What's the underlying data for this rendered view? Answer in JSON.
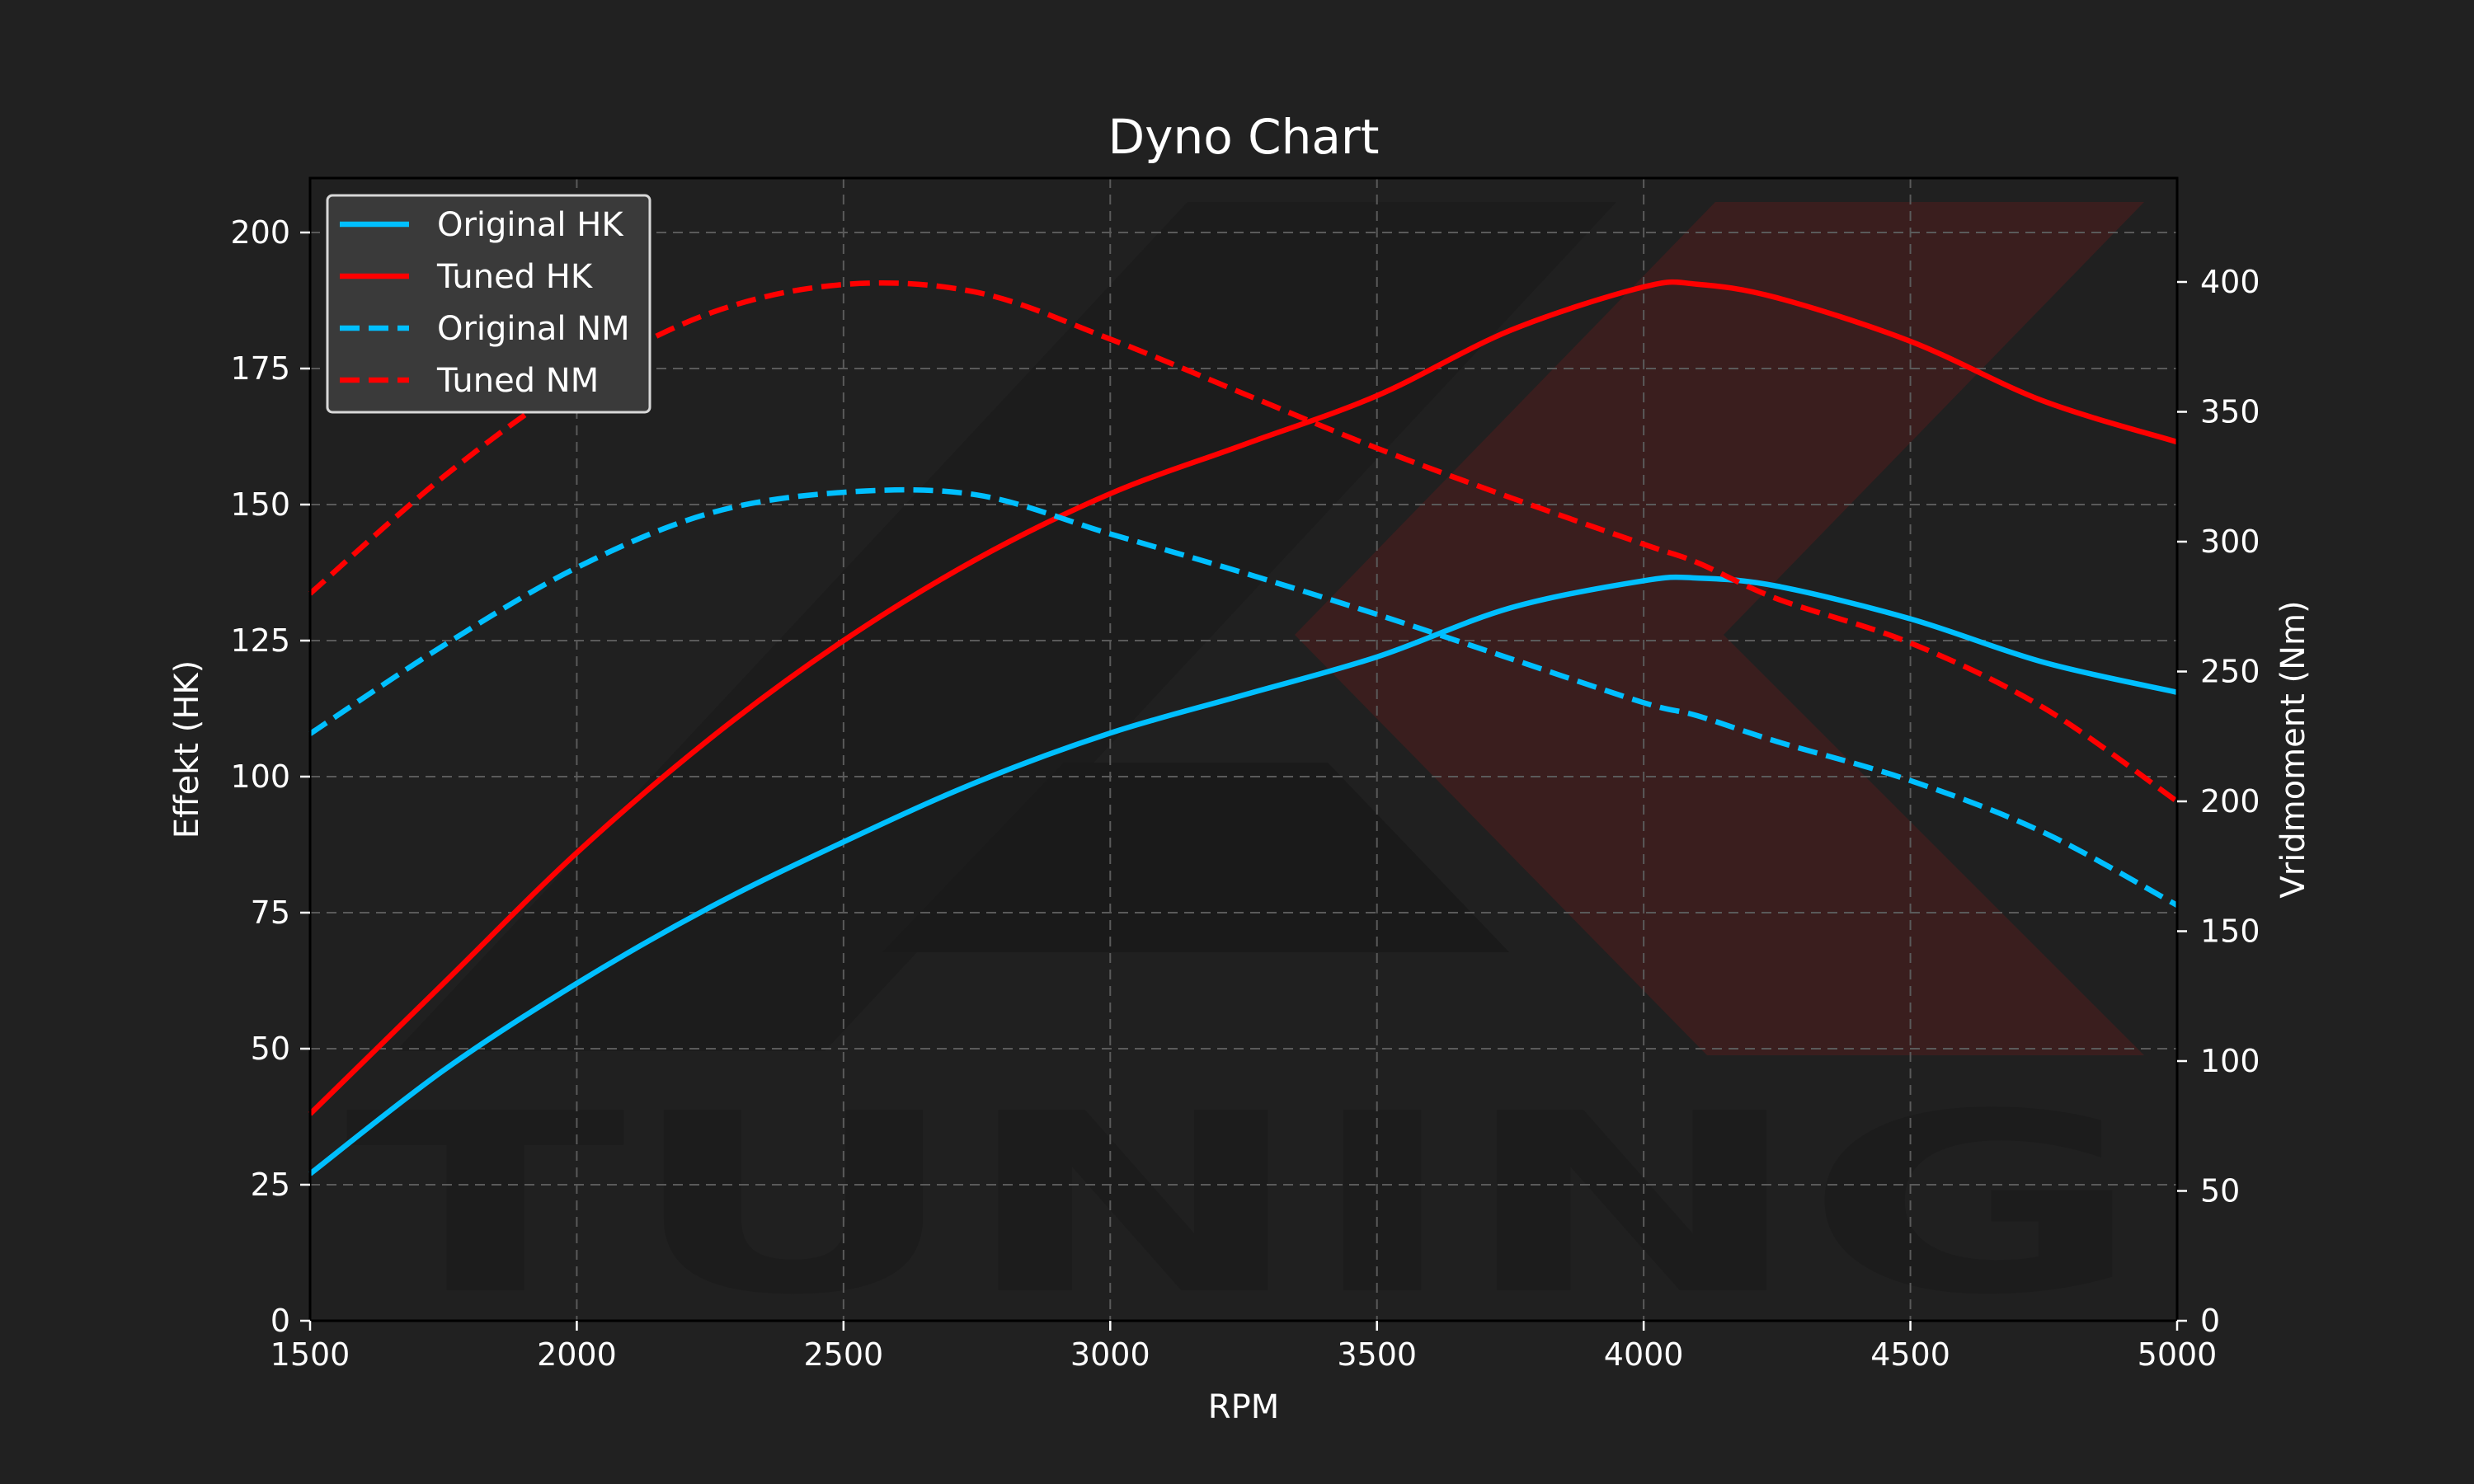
{
  "chart_data": {
    "type": "line",
    "title": "Dyno Chart",
    "xlabel": "RPM",
    "ylabel": "Effekt (HK)",
    "ylabel_right": "Vridmoment (Nm)",
    "xlim": [
      1500,
      5000
    ],
    "ylim": [
      0,
      210
    ],
    "ylim_right": [
      0,
      440
    ],
    "xticks": [
      1500,
      2000,
      2500,
      3000,
      3500,
      4000,
      4500,
      5000
    ],
    "yticks": [
      0,
      25,
      50,
      75,
      100,
      125,
      150,
      175,
      200
    ],
    "yticks_right": [
      0,
      50,
      100,
      150,
      200,
      250,
      300,
      350,
      400
    ],
    "grid": true,
    "legend_position": "top-left",
    "background_color": "#212121",
    "plot_color": "#202020",
    "watermark_text": "TUNING",
    "x": [
      1500,
      1750,
      2000,
      2250,
      2500,
      2750,
      3000,
      3250,
      3500,
      3750,
      4000,
      4100,
      4250,
      4500,
      4750,
      5000
    ],
    "series": [
      {
        "name": "Original HK",
        "axis": "left",
        "color": "#00bfff",
        "dash": "solid",
        "values": [
          27,
          46,
          62,
          76,
          88,
          99,
          108,
          115,
          122,
          131,
          136,
          136.5,
          135,
          129,
          121,
          115.5
        ]
      },
      {
        "name": "Tuned HK",
        "axis": "left",
        "color": "#ff0000",
        "dash": "solid",
        "values": [
          38,
          62,
          86,
          107,
          125,
          140,
          152,
          161,
          170,
          182,
          190,
          190.5,
          188,
          180,
          169,
          161.5
        ]
      },
      {
        "name": "Original NM",
        "axis": "right",
        "color": "#00bfff",
        "dash": "dashed",
        "values": [
          226,
          260,
          290,
          311,
          319,
          318,
          303,
          288,
          272,
          255,
          238,
          233,
          223,
          208,
          188,
          160
        ]
      },
      {
        "name": "Tuned NM",
        "axis": "right",
        "color": "#ff0000",
        "dash": "dashed",
        "values": [
          280,
          325,
          362,
          388,
          399,
          396,
          378,
          357,
          336,
          317,
          299,
          292,
          278,
          261,
          236,
          200
        ]
      }
    ]
  }
}
